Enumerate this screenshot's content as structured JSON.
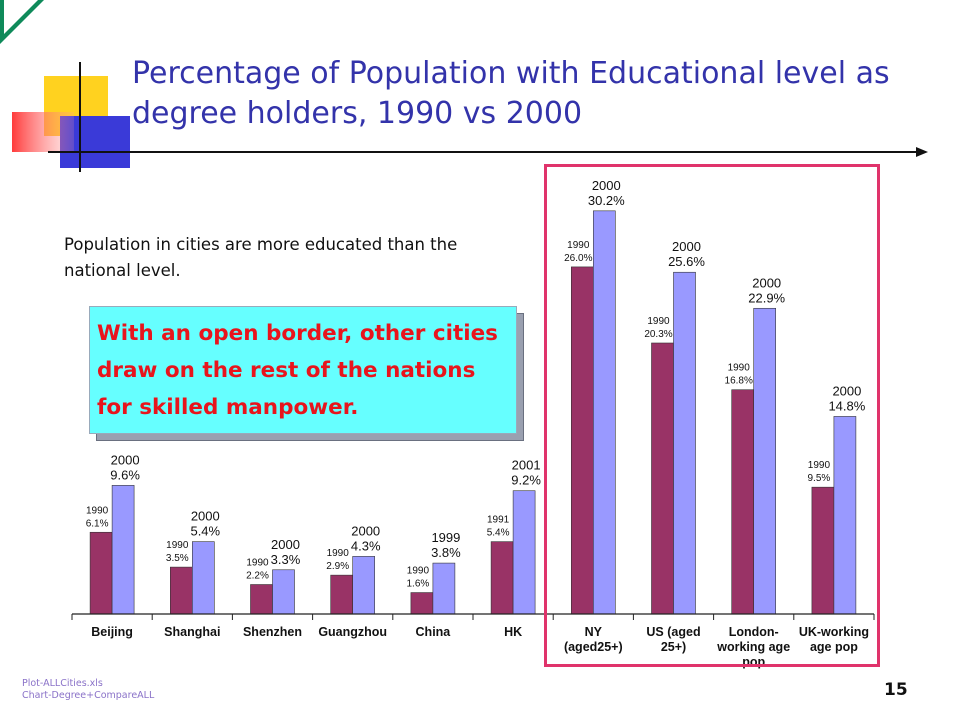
{
  "slide": {
    "title": "Percentage of Population with Educational level as degree holders, 1990 vs 2000",
    "subtitle": "Population in cities are more educated than the national level.",
    "callout": "With an open border, other cities draw on the rest of the nations for skilled manpower.",
    "footnote": [
      "Plot-ALLCities.xls",
      "Chart-Degree+CompareALL"
    ],
    "page_number": "15"
  },
  "colors": {
    "title": "#3333aa",
    "series_early": "#993366",
    "series_late": "#9999ff",
    "callout_bg": "#66ffff",
    "callout_text": "#e8141c",
    "highlight_border": "#e0336b",
    "deco_yellow": "#ffd21f",
    "deco_blue": "#3a3ad8",
    "deco_red": "#ff4a4a"
  },
  "chart_data": {
    "type": "bar",
    "categories": [
      "Beijing",
      "Shanghai",
      "Shenzhen",
      "Guangzhou",
      "China",
      "HK",
      "NY\n(aged25+)",
      "US (aged\n25+)",
      "London-\nworking age\npop",
      "UK-working\nage pop"
    ],
    "series": [
      {
        "values": [
          6.1,
          3.5,
          2.2,
          2.9,
          1.6,
          5.4,
          26.0,
          20.3,
          16.8,
          9.5
        ],
        "labels": [
          "1990\n6.1%",
          "1990\n3.5%",
          "1990\n2.2%",
          "1990\n2.9%",
          "1990\n1.6%",
          "1991\n5.4%",
          "1990\n26.0%",
          "1990\n20.3%",
          "1990\n16.8%",
          "1990\n9.5%"
        ]
      },
      {
        "values": [
          9.6,
          5.4,
          3.3,
          4.3,
          3.8,
          9.2,
          30.2,
          25.6,
          22.9,
          14.8
        ],
        "labels": [
          "2000\n9.6%",
          "2000\n5.4%",
          "2000\n3.3%",
          "2000\n4.3%",
          "1999\n3.8%",
          "2001\n9.2%",
          "2000\n30.2%",
          "2000\n25.6%",
          "2000\n22.9%",
          "2000\n14.8%"
        ]
      }
    ],
    "notes": "Cities share one axis baseline; Chinese/HK group uses a larger vertical scale than the NY/US/London/UK group (separate value axes, no tick labels shown)."
  }
}
